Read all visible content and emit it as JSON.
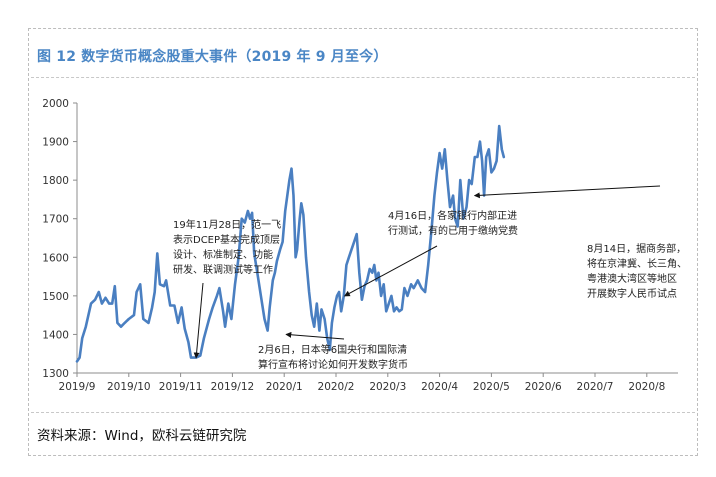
{
  "title": "图 12  数字货币概念股重大事件（2019 年 9 月至今）",
  "source": "资料来源：Wind，欧科云链研究院",
  "colors": {
    "title": "#4a86c5",
    "line": "#4a7fc1",
    "axis": "#8c8c8c"
  },
  "chart_data": {
    "type": "line",
    "title": "图 12  数字货币概念股重大事件（2019 年 9 月至今）",
    "xlabel": "",
    "ylabel": "",
    "ylim": [
      1300,
      2000
    ],
    "yticks": [
      "1300",
      "1400",
      "1500",
      "1600",
      "1700",
      "1800",
      "1900",
      "2000"
    ],
    "xticks": [
      "2019/9",
      "2019/10",
      "2019/11",
      "2019/12",
      "2020/1",
      "2020/2",
      "2020/3",
      "2020/4",
      "2020/5",
      "2020/6",
      "2020/7",
      "2020/8"
    ],
    "grid": false,
    "series": [
      {
        "name": "",
        "points": [
          [
            0,
            1330
          ],
          [
            0.05,
            1340
          ],
          [
            0.1,
            1390
          ],
          [
            0.17,
            1420
          ],
          [
            0.27,
            1480
          ],
          [
            0.35,
            1490
          ],
          [
            0.42,
            1510
          ],
          [
            0.48,
            1480
          ],
          [
            0.55,
            1495
          ],
          [
            0.62,
            1480
          ],
          [
            0.68,
            1480
          ],
          [
            0.73,
            1525
          ],
          [
            0.78,
            1430
          ],
          [
            0.85,
            1420
          ],
          [
            0.92,
            1430
          ],
          [
            1.0,
            1440
          ],
          [
            1.1,
            1450
          ],
          [
            1.15,
            1510
          ],
          [
            1.22,
            1530
          ],
          [
            1.28,
            1440
          ],
          [
            1.38,
            1430
          ],
          [
            1.45,
            1470
          ],
          [
            1.5,
            1510
          ],
          [
            1.55,
            1610
          ],
          [
            1.6,
            1530
          ],
          [
            1.68,
            1525
          ],
          [
            1.72,
            1540
          ],
          [
            1.8,
            1475
          ],
          [
            1.88,
            1475
          ],
          [
            1.95,
            1430
          ],
          [
            2.02,
            1470
          ],
          [
            2.08,
            1415
          ],
          [
            2.15,
            1380
          ],
          [
            2.2,
            1340
          ],
          [
            2.3,
            1340
          ],
          [
            2.38,
            1345
          ],
          [
            2.45,
            1390
          ],
          [
            2.55,
            1440
          ],
          [
            2.62,
            1470
          ],
          [
            2.7,
            1500
          ],
          [
            2.75,
            1520
          ],
          [
            2.82,
            1460
          ],
          [
            2.86,
            1420
          ],
          [
            2.92,
            1480
          ],
          [
            2.98,
            1440
          ],
          [
            3.05,
            1530
          ],
          [
            3.12,
            1600
          ],
          [
            3.18,
            1700
          ],
          [
            3.24,
            1690
          ],
          [
            3.3,
            1720
          ],
          [
            3.34,
            1700
          ],
          [
            3.38,
            1715
          ],
          [
            3.42,
            1610
          ],
          [
            3.48,
            1560
          ],
          [
            3.55,
            1500
          ],
          [
            3.62,
            1440
          ],
          [
            3.68,
            1410
          ],
          [
            3.72,
            1470
          ],
          [
            3.78,
            1540
          ],
          [
            3.82,
            1560
          ],
          [
            3.86,
            1590
          ],
          [
            3.92,
            1620
          ],
          [
            3.97,
            1640
          ],
          [
            4.02,
            1720
          ],
          [
            4.06,
            1760
          ],
          [
            4.1,
            1800
          ],
          [
            4.14,
            1830
          ],
          [
            4.18,
            1760
          ],
          [
            4.22,
            1600
          ],
          [
            4.25,
            1620
          ],
          [
            4.3,
            1700
          ],
          [
            4.33,
            1740
          ],
          [
            4.37,
            1710
          ],
          [
            4.42,
            1600
          ],
          [
            4.48,
            1510
          ],
          [
            4.53,
            1450
          ],
          [
            4.58,
            1420
          ],
          [
            4.63,
            1480
          ],
          [
            4.68,
            1410
          ],
          [
            4.72,
            1465
          ],
          [
            4.78,
            1440
          ],
          [
            4.83,
            1390
          ],
          [
            4.88,
            1360
          ],
          [
            4.92,
            1430
          ],
          [
            4.97,
            1470
          ],
          [
            5.02,
            1500
          ],
          [
            5.06,
            1510
          ],
          [
            5.1,
            1460
          ],
          [
            5.15,
            1500
          ],
          [
            5.2,
            1580
          ],
          [
            5.25,
            1600
          ],
          [
            5.3,
            1620
          ],
          [
            5.35,
            1640
          ],
          [
            5.4,
            1660
          ],
          [
            5.45,
            1560
          ],
          [
            5.5,
            1490
          ],
          [
            5.55,
            1525
          ],
          [
            5.6,
            1540
          ],
          [
            5.65,
            1570
          ],
          [
            5.7,
            1560
          ],
          [
            5.74,
            1580
          ],
          [
            5.78,
            1540
          ],
          [
            5.82,
            1560
          ],
          [
            5.87,
            1500
          ],
          [
            5.92,
            1530
          ],
          [
            5.97,
            1460
          ],
          [
            6.02,
            1480
          ],
          [
            6.07,
            1500
          ],
          [
            6.12,
            1460
          ],
          [
            6.17,
            1470
          ],
          [
            6.22,
            1460
          ],
          [
            6.27,
            1465
          ],
          [
            6.32,
            1520
          ],
          [
            6.38,
            1500
          ],
          [
            6.45,
            1530
          ],
          [
            6.5,
            1520
          ],
          [
            6.58,
            1540
          ],
          [
            6.65,
            1520
          ],
          [
            6.72,
            1510
          ],
          [
            6.78,
            1580
          ],
          [
            6.85,
            1680
          ],
          [
            6.9,
            1760
          ],
          [
            6.95,
            1820
          ],
          [
            7.0,
            1870
          ],
          [
            7.05,
            1830
          ],
          [
            7.1,
            1880
          ],
          [
            7.15,
            1800
          ],
          [
            7.2,
            1730
          ],
          [
            7.26,
            1760
          ],
          [
            7.3,
            1700
          ],
          [
            7.35,
            1680
          ],
          [
            7.4,
            1800
          ],
          [
            7.46,
            1700
          ],
          [
            7.52,
            1730
          ],
          [
            7.57,
            1800
          ],
          [
            7.62,
            1790
          ],
          [
            7.68,
            1860
          ],
          [
            7.73,
            1860
          ],
          [
            7.78,
            1900
          ],
          [
            7.82,
            1850
          ],
          [
            7.86,
            1760
          ],
          [
            7.9,
            1860
          ],
          [
            7.95,
            1880
          ],
          [
            8.0,
            1820
          ],
          [
            8.05,
            1830
          ],
          [
            8.1,
            1850
          ],
          [
            8.15,
            1940
          ],
          [
            8.2,
            1880
          ],
          [
            8.24,
            1860
          ]
        ]
      }
    ],
    "annotations": [
      {
        "lines": [
          "19年11月28日，范一飞",
          "表示DCEP基本完成顶层",
          "设计、标准制定、功能",
          "研发、联调测试等工作"
        ],
        "target": [
          2.3,
          1340
        ]
      },
      {
        "lines": [
          "2月6日，日本等6国央行和国际清",
          "算行宣布将讨论如何开发数字货币"
        ],
        "target": [
          4.04,
          1400
        ]
      },
      {
        "lines": [
          "4月16日，各家银行内部正进",
          "行测试，有的已用于缴纳党费"
        ],
        "target": [
          5.17,
          1500
        ]
      },
      {
        "lines": [
          "8月14日，据商务部，",
          "将在京津冀、长三角、",
          "粤港澳大湾区等地区",
          "开展数字人民币试点"
        ],
        "target": [
          7.68,
          1760
        ]
      }
    ]
  }
}
